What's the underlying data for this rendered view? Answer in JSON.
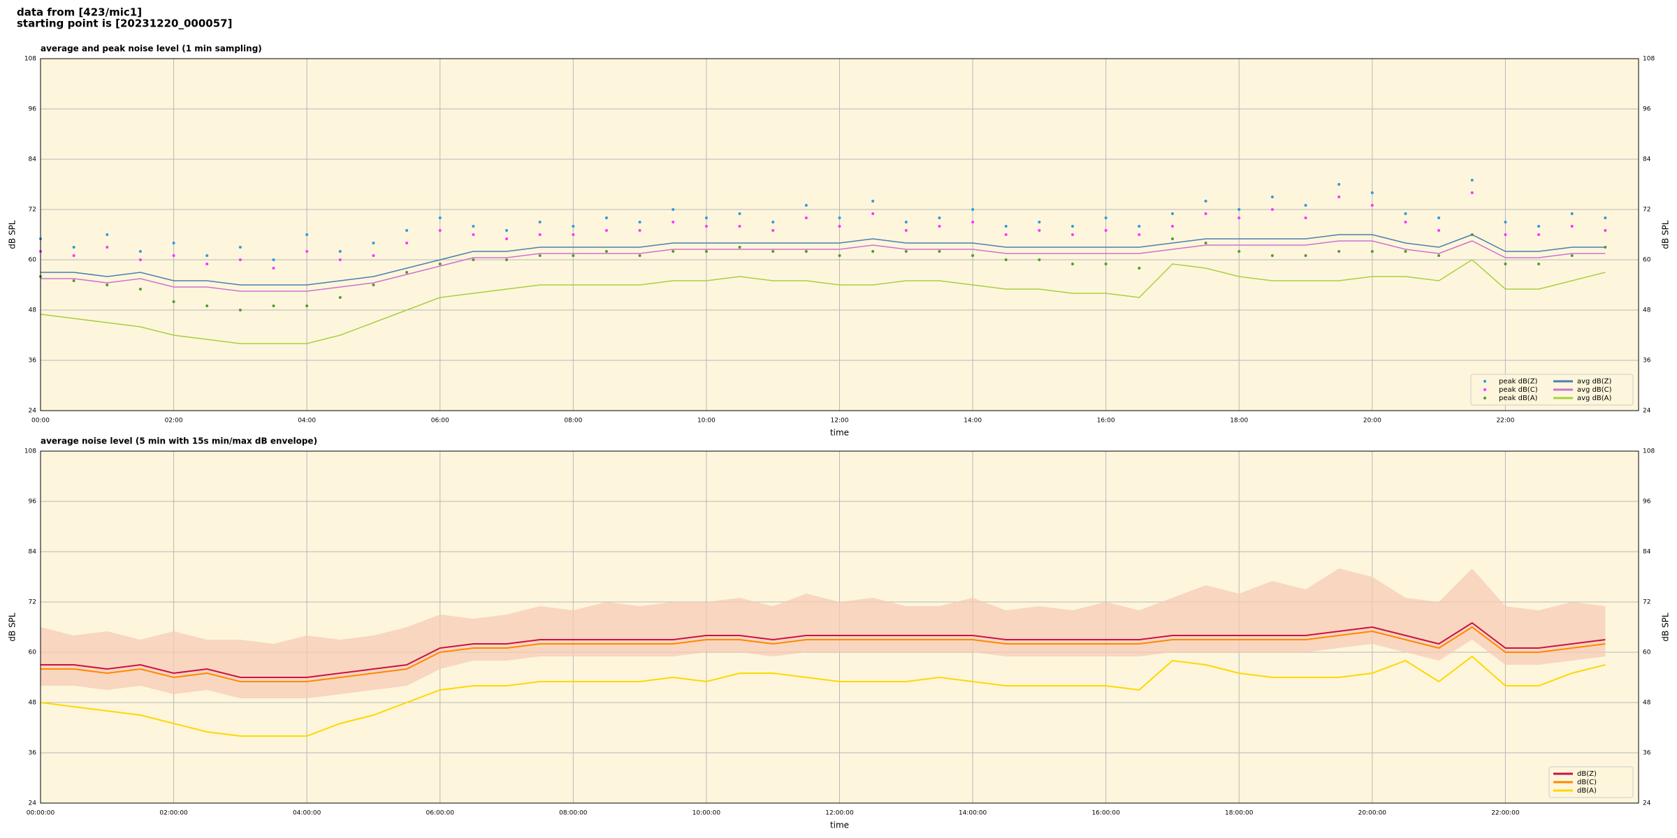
{
  "header": {
    "line1": "data from [423/mic1]",
    "line2": "starting point is [20231220_000057]"
  },
  "chart_data": [
    {
      "type": "line",
      "title": "average and peak noise level (1 min sampling)",
      "xlabel": "time",
      "ylabel": "dB SPL",
      "x": [
        0,
        0.5,
        1,
        1.5,
        2,
        2.5,
        3,
        3.5,
        4,
        4.5,
        5,
        5.5,
        6,
        6.5,
        7,
        7.5,
        8,
        8.5,
        9,
        9.5,
        10,
        10.5,
        11,
        11.5,
        12,
        12.5,
        13,
        13.5,
        14,
        14.5,
        15,
        15.5,
        16,
        16.5,
        17,
        17.5,
        18,
        18.5,
        19,
        19.5,
        20,
        20.5,
        21,
        21.5,
        22,
        22.5,
        23,
        23.5
      ],
      "xlim": [
        0,
        24
      ],
      "xticks": [
        {
          "value": 0,
          "label": "00:00"
        },
        {
          "value": 2,
          "label": "02:00"
        },
        {
          "value": 4,
          "label": "04:00"
        },
        {
          "value": 6,
          "label": "06:00"
        },
        {
          "value": 8,
          "label": "08:00"
        },
        {
          "value": 10,
          "label": "10:00"
        },
        {
          "value": 12,
          "label": "12:00"
        },
        {
          "value": 14,
          "label": "14:00"
        },
        {
          "value": 16,
          "label": "16:00"
        },
        {
          "value": 18,
          "label": "18:00"
        },
        {
          "value": 20,
          "label": "20:00"
        },
        {
          "value": 22,
          "label": "22:00"
        }
      ],
      "ylim": [
        24,
        108
      ],
      "yticks": [
        24,
        36,
        48,
        60,
        72,
        84,
        96,
        108
      ],
      "grid": true,
      "legend": "lower right",
      "series": [
        {
          "name": "peak dB(Z)",
          "kind": "scatter",
          "color": "#3399dd",
          "values": [
            65,
            63,
            66,
            62,
            64,
            61,
            63,
            60,
            66,
            62,
            64,
            67,
            70,
            68,
            67,
            69,
            68,
            70,
            69,
            72,
            70,
            71,
            69,
            73,
            70,
            74,
            69,
            70,
            72,
            68,
            69,
            68,
            70,
            68,
            71,
            74,
            72,
            75,
            73,
            78,
            76,
            71,
            70,
            79,
            69,
            68,
            71,
            70
          ]
        },
        {
          "name": "peak dB(C)",
          "kind": "scatter",
          "color": "#ff33ff",
          "values": [
            62,
            61,
            63,
            60,
            61,
            59,
            60,
            58,
            62,
            60,
            61,
            64,
            67,
            66,
            65,
            66,
            66,
            67,
            67,
            69,
            68,
            68,
            67,
            70,
            68,
            71,
            67,
            68,
            69,
            66,
            67,
            66,
            67,
            66,
            68,
            71,
            70,
            72,
            70,
            75,
            73,
            69,
            67,
            76,
            66,
            66,
            68,
            67
          ]
        },
        {
          "name": "peak dB(A)",
          "kind": "scatter",
          "color": "#559933",
          "values": [
            56,
            55,
            54,
            53,
            50,
            49,
            48,
            49,
            49,
            51,
            54,
            57,
            59,
            60,
            60,
            61,
            61,
            62,
            61,
            62,
            62,
            63,
            62,
            62,
            61,
            62,
            62,
            62,
            61,
            60,
            60,
            59,
            59,
            58,
            65,
            64,
            62,
            61,
            61,
            62,
            62,
            62,
            61,
            66,
            59,
            59,
            61,
            63
          ]
        },
        {
          "name": "avg dB(Z)",
          "kind": "line",
          "color": "#4a7fb0",
          "values": [
            57,
            57,
            56,
            57,
            55,
            55,
            54,
            54,
            54,
            55,
            56,
            58,
            60,
            62,
            62,
            63,
            63,
            63,
            63,
            64,
            64,
            64,
            64,
            64,
            64,
            65,
            64,
            64,
            64,
            63,
            63,
            63,
            63,
            63,
            64,
            65,
            65,
            65,
            65,
            66,
            66,
            64,
            63,
            66,
            62,
            62,
            63,
            63
          ]
        },
        {
          "name": "avg dB(C)",
          "kind": "line",
          "color": "#d070d0",
          "values": [
            55.5,
            55.5,
            54.5,
            55.5,
            53.5,
            53.5,
            52.5,
            52.5,
            52.5,
            53.5,
            54.5,
            56.5,
            58.5,
            60.5,
            60.5,
            61.5,
            61.5,
            61.5,
            61.5,
            62.5,
            62.5,
            62.5,
            62.5,
            62.5,
            62.5,
            63.5,
            62.5,
            62.5,
            62.5,
            61.5,
            61.5,
            61.5,
            61.5,
            61.5,
            62.5,
            63.5,
            63.5,
            63.5,
            63.5,
            64.5,
            64.5,
            62.5,
            61.5,
            64.5,
            60.5,
            60.5,
            61.5,
            61.5
          ]
        },
        {
          "name": "avg dB(A)",
          "kind": "line",
          "color": "#a8d040",
          "values": [
            47,
            46,
            45,
            44,
            42,
            41,
            40,
            40,
            40,
            42,
            45,
            48,
            51,
            52,
            53,
            54,
            54,
            54,
            54,
            55,
            55,
            56,
            55,
            55,
            54,
            54,
            55,
            55,
            54,
            53,
            53,
            52,
            52,
            51,
            59,
            58,
            56,
            55,
            55,
            55,
            56,
            56,
            55,
            60,
            53,
            53,
            55,
            57
          ]
        }
      ]
    },
    {
      "type": "line",
      "title": "average noise level (5 min with 15s min/max dB envelope)",
      "xlabel": "time",
      "ylabel": "dB SPL",
      "x": [
        0,
        0.5,
        1,
        1.5,
        2,
        2.5,
        3,
        3.5,
        4,
        4.5,
        5,
        5.5,
        6,
        6.5,
        7,
        7.5,
        8,
        8.5,
        9,
        9.5,
        10,
        10.5,
        11,
        11.5,
        12,
        12.5,
        13,
        13.5,
        14,
        14.5,
        15,
        15.5,
        16,
        16.5,
        17,
        17.5,
        18,
        18.5,
        19,
        19.5,
        20,
        20.5,
        21,
        21.5,
        22,
        22.5,
        23,
        23.5
      ],
      "xlim": [
        0,
        24
      ],
      "xticks": [
        {
          "value": 0,
          "label": "00:00:00"
        },
        {
          "value": 2,
          "label": "02:00:00"
        },
        {
          "value": 4,
          "label": "04:00:00"
        },
        {
          "value": 6,
          "label": "06:00:00"
        },
        {
          "value": 8,
          "label": "08:00:00"
        },
        {
          "value": 10,
          "label": "10:00:00"
        },
        {
          "value": 12,
          "label": "12:00:00"
        },
        {
          "value": 14,
          "label": "14:00:00"
        },
        {
          "value": 16,
          "label": "16:00:00"
        },
        {
          "value": 18,
          "label": "18:00:00"
        },
        {
          "value": 20,
          "label": "20:00:00"
        },
        {
          "value": 22,
          "label": "22:00:00"
        }
      ],
      "ylim": [
        24,
        108
      ],
      "yticks": [
        24,
        36,
        48,
        60,
        72,
        84,
        96,
        108
      ],
      "grid": true,
      "legend": "lower right",
      "envelope": {
        "color": "#f6c9b4",
        "upper": [
          66,
          64,
          65,
          63,
          65,
          63,
          63,
          62,
          64,
          63,
          64,
          66,
          69,
          68,
          69,
          71,
          70,
          72,
          71,
          72,
          72,
          73,
          71,
          74,
          72,
          73,
          71,
          71,
          73,
          70,
          71,
          70,
          72,
          70,
          73,
          76,
          74,
          77,
          75,
          80,
          78,
          73,
          72,
          80,
          71,
          70,
          72,
          71
        ],
        "lower": [
          52,
          52,
          51,
          52,
          50,
          51,
          49,
          49,
          49,
          50,
          51,
          52,
          56,
          58,
          58,
          59,
          59,
          59,
          59,
          59,
          60,
          60,
          59,
          60,
          60,
          60,
          60,
          60,
          60,
          59,
          59,
          59,
          59,
          59,
          60,
          60,
          60,
          60,
          60,
          61,
          62,
          60,
          58,
          63,
          57,
          57,
          58,
          59
        ]
      },
      "series": [
        {
          "name": "dB(Z)",
          "kind": "line",
          "color": "#cc1144",
          "values": [
            57,
            57,
            56,
            57,
            55,
            56,
            54,
            54,
            54,
            55,
            56,
            57,
            61,
            62,
            62,
            63,
            63,
            63,
            63,
            63,
            64,
            64,
            63,
            64,
            64,
            64,
            64,
            64,
            64,
            63,
            63,
            63,
            63,
            63,
            64,
            64,
            64,
            64,
            64,
            65,
            66,
            64,
            62,
            67,
            61,
            61,
            62,
            63
          ]
        },
        {
          "name": "dB(C)",
          "kind": "line",
          "color": "#ff8800",
          "values": [
            56,
            56,
            55,
            56,
            54,
            55,
            53,
            53,
            53,
            54,
            55,
            56,
            60,
            61,
            61,
            62,
            62,
            62,
            62,
            62,
            63,
            63,
            62,
            63,
            63,
            63,
            63,
            63,
            63,
            62,
            62,
            62,
            62,
            62,
            63,
            63,
            63,
            63,
            63,
            64,
            65,
            63,
            61,
            66,
            60,
            60,
            61,
            62
          ]
        },
        {
          "name": "dB(A)",
          "kind": "line",
          "color": "#ffd700",
          "values": [
            48,
            47,
            46,
            45,
            43,
            41,
            40,
            40,
            40,
            43,
            45,
            48,
            51,
            52,
            52,
            53,
            53,
            53,
            53,
            54,
            53,
            55,
            55,
            54,
            53,
            53,
            53,
            54,
            53,
            52,
            52,
            52,
            52,
            51,
            58,
            57,
            55,
            54,
            54,
            54,
            55,
            58,
            53,
            59,
            52,
            52,
            55,
            57
          ]
        }
      ]
    }
  ]
}
